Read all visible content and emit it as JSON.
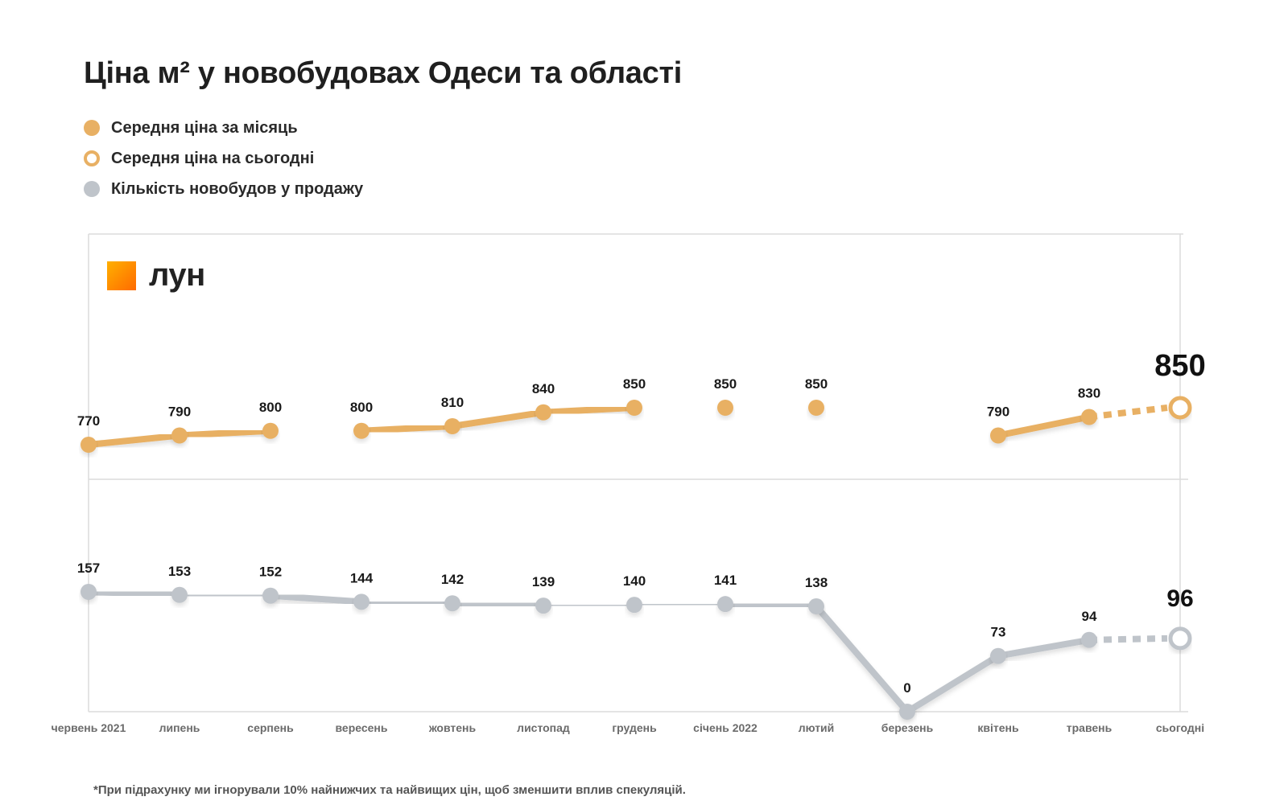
{
  "title": "Ціна м² у новобудовах Одеси та області",
  "legend": [
    {
      "label": "Середня ціна за місяць",
      "style": "filled-orange"
    },
    {
      "label": "Середня ціна на сьогодні",
      "style": "hollow-orange"
    },
    {
      "label": "Кількість новобудов у продажу",
      "style": "filled-grey"
    }
  ],
  "brand": {
    "name": "лун"
  },
  "footnote": "*При підрахунку ми ігнорували 10% найнижчих та найвищих цін, щоб зменшити вплив спекуляцій.",
  "colors": {
    "price": "#e8b064",
    "count": "#bfc4ca",
    "grid": "#dcdcdc"
  },
  "chart_data": {
    "type": "line",
    "categories": [
      "червень 2021",
      "липень",
      "серпень",
      "вересень",
      "жовтень",
      "листопад",
      "грудень",
      "січень 2022",
      "лютий",
      "березень",
      "квітень",
      "травень",
      "сьогодні"
    ],
    "series": [
      {
        "name": "Середня ціна за місяць",
        "values": [
          770,
          790,
          800,
          800,
          810,
          840,
          850,
          850,
          850,
          null,
          790,
          830,
          850
        ],
        "today_value": 850,
        "today_style": "hollow, dashed connector"
      },
      {
        "name": "Кількість новобудов у продажу",
        "values": [
          157,
          153,
          152,
          144,
          142,
          139,
          140,
          141,
          138,
          0,
          73,
          94,
          96
        ],
        "today_value": 96,
        "today_style": "hollow, dashed connector"
      }
    ],
    "grid": true
  }
}
